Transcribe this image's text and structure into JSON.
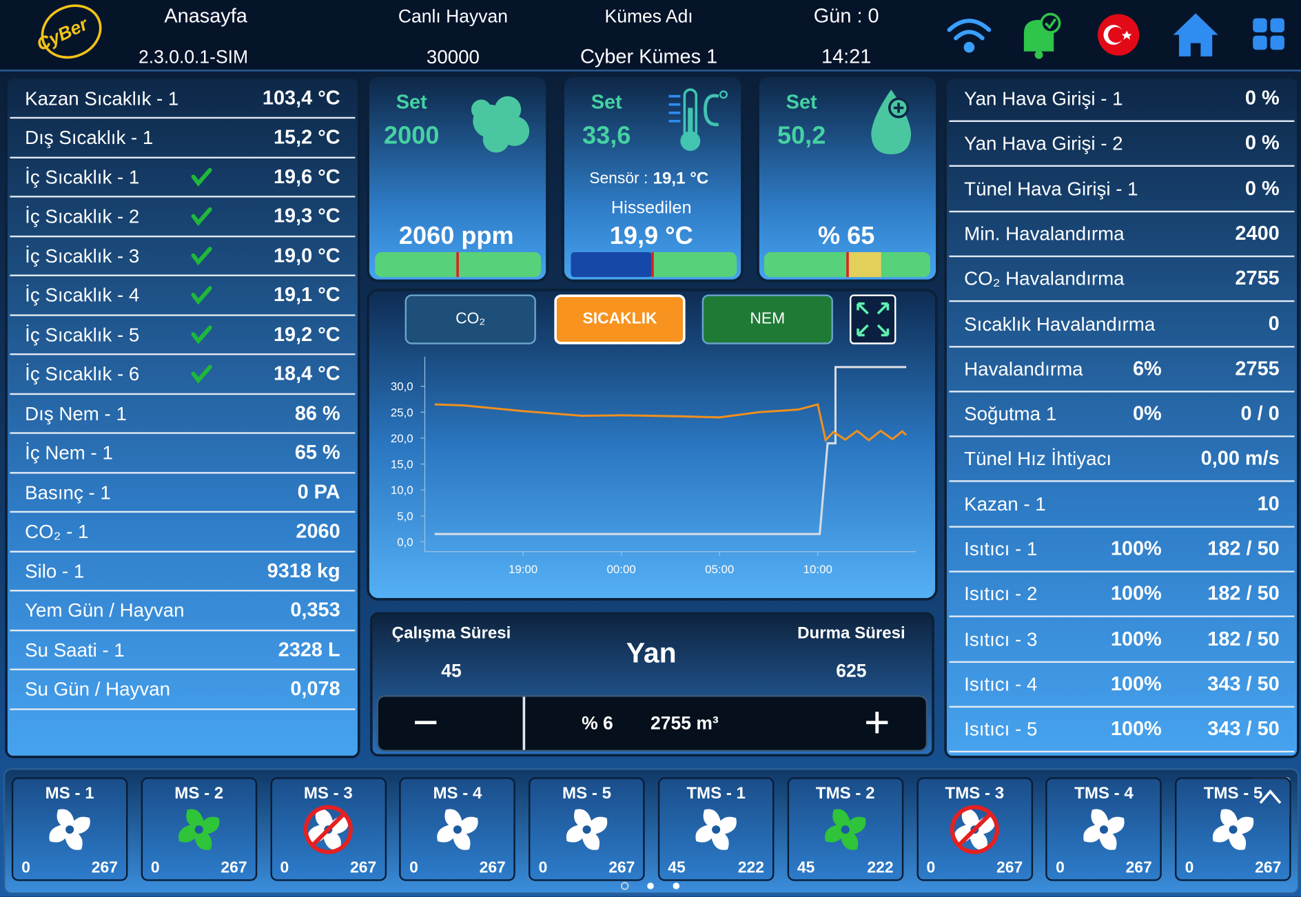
{
  "header": {
    "logo": "CyBer",
    "home_label": "Anasayfa",
    "version": "2.3.0.0.1-SIM",
    "animals_label": "Canlı Hayvan",
    "animals": "30000",
    "coop_label": "Kümes Adı",
    "coop": "Cyber Kümes 1",
    "day": "Gün : 0",
    "time": "14:21"
  },
  "left_list": [
    {
      "label": "Kazan Sıcaklık - 1",
      "value": "103,4 °C"
    },
    {
      "label": "Dış Sıcaklık - 1",
      "value": "15,2 °C"
    },
    {
      "label": "İç Sıcaklık - 1",
      "value": "19,6 °C",
      "ok": true
    },
    {
      "label": "İç Sıcaklık - 2",
      "value": "19,3 °C",
      "ok": true
    },
    {
      "label": "İç Sıcaklık - 3",
      "value": "19,0 °C",
      "ok": true
    },
    {
      "label": "İç Sıcaklık - 4",
      "value": "19,1 °C",
      "ok": true
    },
    {
      "label": "İç Sıcaklık - 5",
      "value": "19,2 °C",
      "ok": true
    },
    {
      "label": "İç Sıcaklık - 6",
      "value": "18,4 °C",
      "ok": true
    },
    {
      "label": "Dış Nem - 1",
      "value": "86 %"
    },
    {
      "label": "İç Nem - 1",
      "value": "65 %"
    },
    {
      "label": "Basınç - 1",
      "value": "0 PA"
    },
    {
      "label": "CO₂ - 1",
      "value": "2060"
    },
    {
      "label": "Silo - 1",
      "value": "9318 kg"
    },
    {
      "label": "Yem Gün / Hayvan",
      "value": "0,353"
    },
    {
      "label": "Su Saati - 1",
      "value": "2328 L"
    },
    {
      "label": "Su Gün / Hayvan",
      "value": "0,078"
    }
  ],
  "gauges": [
    {
      "set_label": "Set",
      "set": "2000",
      "icon_text": "CO₂",
      "reading": "2060 ppm"
    },
    {
      "set_label": "Set",
      "set": "33,6",
      "sensor_label": "Sensör :",
      "sensor": "19,1 °C",
      "felt_label": "Hissedilen",
      "reading": "19,9 °C"
    },
    {
      "set_label": "Set",
      "set": "50,2",
      "icon_text": "RH",
      "reading": "% 65"
    }
  ],
  "chart": {
    "tabs": [
      {
        "label": "CO₂",
        "color": "#1d4f78"
      },
      {
        "label": "SICAKLIK",
        "color": "#f7931e"
      },
      {
        "label": "NEM",
        "color": "#1f7a36"
      }
    ],
    "active_tab": 1,
    "type": "line",
    "xlim": [
      0,
      25
    ],
    "xticks": [
      {
        "value": 5,
        "label": "19:00"
      },
      {
        "value": 10,
        "label": "00:00"
      },
      {
        "value": 15,
        "label": "05:00"
      },
      {
        "value": 20,
        "label": "10:00"
      }
    ],
    "ylim": [
      -1.9,
      35.7
    ],
    "yticks": [
      {
        "value": 0,
        "label": "0,0"
      },
      {
        "value": 5,
        "label": "5,0"
      },
      {
        "value": 10,
        "label": "10,0"
      },
      {
        "value": 15,
        "label": "15,0"
      },
      {
        "value": 20,
        "label": "20,0"
      },
      {
        "value": 25,
        "label": "25,0"
      },
      {
        "value": 30,
        "label": "30,0"
      }
    ],
    "series": [
      {
        "color": "#d9dde3",
        "x": [
          0.5,
          20.1,
          20.5,
          20.9,
          20.9,
          24.5
        ],
        "values": [
          1.5,
          1.5,
          19,
          19,
          33.7,
          33.7
        ]
      },
      {
        "color": "#f0901e",
        "x": [
          0.5,
          2,
          5,
          8,
          10,
          13,
          15,
          17,
          19,
          20,
          20.4,
          20.8,
          21.4,
          22,
          22.6,
          23.2,
          23.8,
          24.3,
          24.5
        ],
        "values": [
          26.5,
          26.3,
          25.2,
          24.3,
          24.4,
          24.2,
          24,
          25,
          25.5,
          26.5,
          19.6,
          21.2,
          19.7,
          21.4,
          19.6,
          21.4,
          19.8,
          21.3,
          20.6
        ]
      }
    ]
  },
  "run": {
    "run_label": "Çalışma Süresi",
    "run": "45",
    "title": "Yan",
    "stop_label": "Durma Süresi",
    "stop": "625",
    "percent": "% 6",
    "flow": "2755 m³"
  },
  "right_list": [
    {
      "label": "Yan Hava Girişi - 1",
      "value": "0 %"
    },
    {
      "label": "Yan Hava Girişi - 2",
      "value": "0 %"
    },
    {
      "label": "Tünel Hava Girişi - 1",
      "value": "0 %"
    },
    {
      "label": "Min. Havalandırma",
      "value": "2400"
    },
    {
      "label": "CO₂ Havalandırma",
      "value": "2755"
    },
    {
      "label": "Sıcaklık Havalandırma",
      "value": "0"
    },
    {
      "label": "Havalandırma",
      "pct": "6%",
      "value": "2755"
    },
    {
      "label": "Soğutma 1",
      "pct": "0%",
      "value": "0 / 0"
    },
    {
      "label": "Tünel Hız İhtiyacı",
      "value": "0,00 m/s"
    },
    {
      "label": "Kazan - 1",
      "value": "10"
    },
    {
      "label": "Isıtıcı - 1",
      "pct": "100%",
      "value": "182 / 50"
    },
    {
      "label": "Isıtıcı - 2",
      "pct": "100%",
      "value": "182 / 50"
    },
    {
      "label": "Isıtıcı - 3",
      "pct": "100%",
      "value": "182 / 50"
    },
    {
      "label": "Isıtıcı - 4",
      "pct": "100%",
      "value": "343 / 50"
    },
    {
      "label": "Isıtıcı - 5",
      "pct": "100%",
      "value": "343 / 50"
    }
  ],
  "fans": [
    {
      "name": "MS - 1",
      "left": "0",
      "right": "267",
      "state": "off"
    },
    {
      "name": "MS - 2",
      "left": "0",
      "right": "267",
      "state": "on"
    },
    {
      "name": "MS - 3",
      "left": "0",
      "right": "267",
      "state": "disabled"
    },
    {
      "name": "MS - 4",
      "left": "0",
      "right": "267",
      "state": "off"
    },
    {
      "name": "MS - 5",
      "left": "0",
      "right": "267",
      "state": "off"
    },
    {
      "name": "TMS - 1",
      "left": "45",
      "right": "222",
      "state": "off"
    },
    {
      "name": "TMS - 2",
      "left": "45",
      "right": "222",
      "state": "on"
    },
    {
      "name": "TMS - 3",
      "left": "0",
      "right": "267",
      "state": "disabled"
    },
    {
      "name": "TMS - 4",
      "left": "0",
      "right": "267",
      "state": "off"
    },
    {
      "name": "TMS - 5",
      "left": "0",
      "right": "267",
      "state": "off"
    }
  ]
}
